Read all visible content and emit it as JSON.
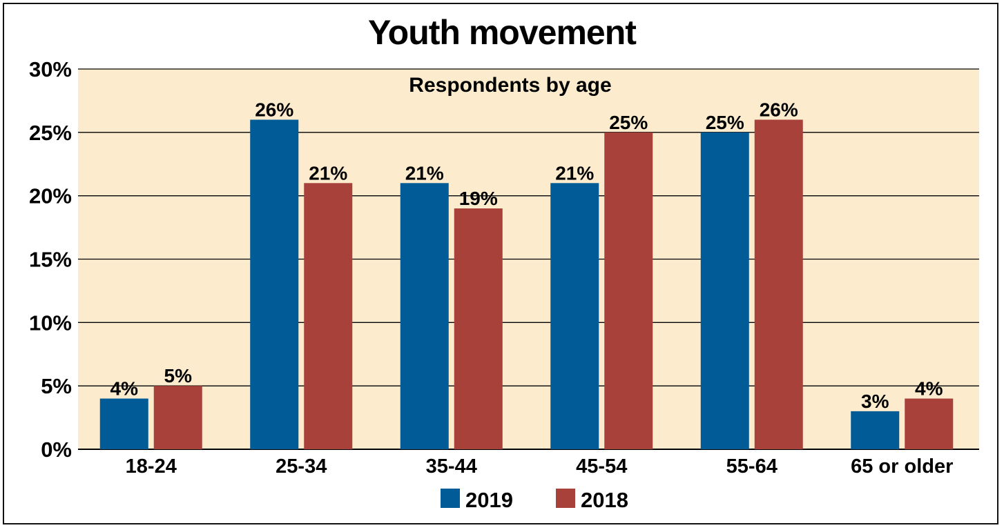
{
  "chart_data": {
    "type": "bar",
    "title": "Youth movement",
    "subtitle": "Respondents by age",
    "categories": [
      "18-24",
      "25-34",
      "35-44",
      "45-54",
      "55-64",
      "65 or older"
    ],
    "series": [
      {
        "name": "2019",
        "values": [
          4,
          26,
          21,
          21,
          25,
          3
        ],
        "labels": [
          "4%",
          "26%",
          "21%",
          "21%",
          "25%",
          "3%"
        ],
        "color": "#005b96"
      },
      {
        "name": "2018",
        "values": [
          5,
          21,
          19,
          25,
          26,
          4
        ],
        "labels": [
          "5%",
          "21%",
          "19%",
          "25%",
          "26%",
          "4%"
        ],
        "color": "#a8413a"
      }
    ],
    "ylim": [
      0,
      30
    ],
    "yticks": [
      0,
      5,
      10,
      15,
      20,
      25,
      30
    ],
    "ytick_labels": [
      "0%",
      "5%",
      "10%",
      "15%",
      "20%",
      "25%",
      "30%"
    ],
    "grid": true,
    "legend_position": "bottom-center",
    "plot_background": "#fdebcd"
  }
}
